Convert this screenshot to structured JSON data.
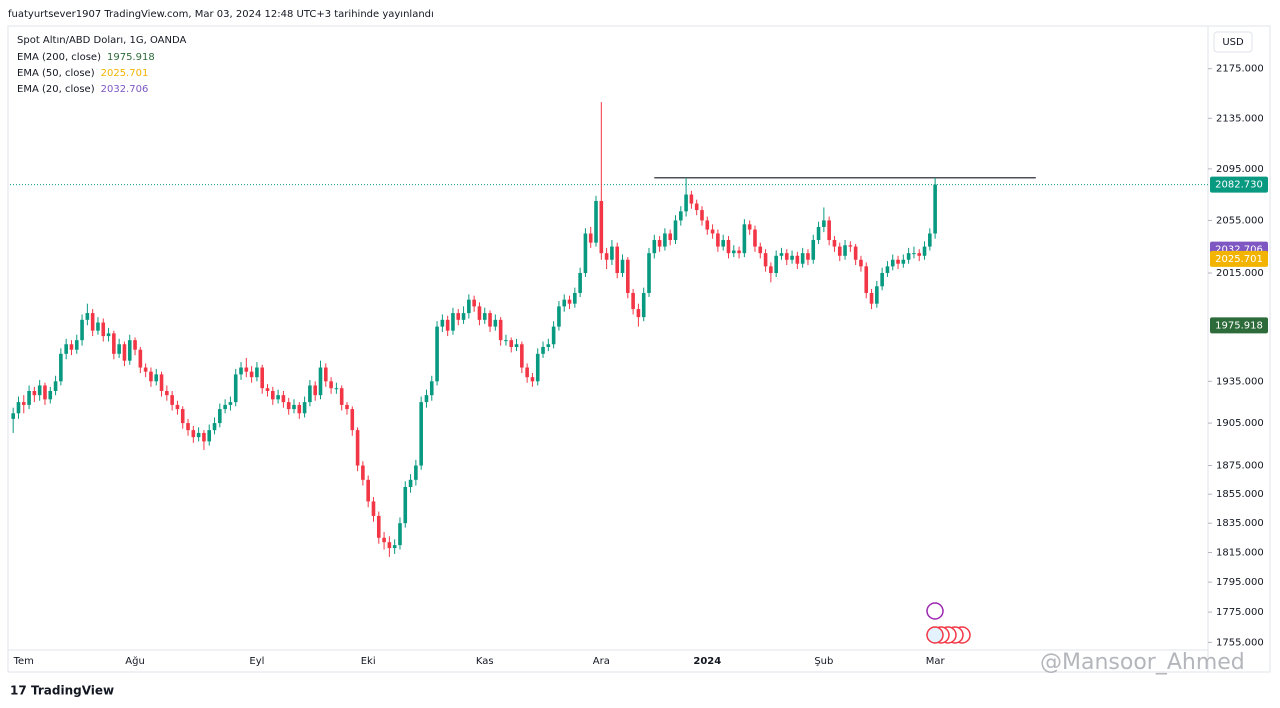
{
  "header": {
    "publisher": "fuatyurtsever1907 TradingView.com, Mar 03, 2024 12:48 UTC+3 tarihinde yayınlandı"
  },
  "chart_data": {
    "type": "candlestick",
    "title": "Spot Altın/ABD Doları, 1G, OANDA",
    "currency": "USD",
    "log_scale": true,
    "up_color": "#089981",
    "down_color": "#f23645",
    "ylim": [
      1750,
      2210
    ],
    "xlim": [
      -0.6,
      225.5
    ],
    "yticks": [
      {
        "value": 2175,
        "label": "2175.000"
      },
      {
        "value": 2135,
        "label": "2135.000"
      },
      {
        "value": 2095,
        "label": "2095.000"
      },
      {
        "value": 2055,
        "label": "2055.000"
      },
      {
        "value": 2015,
        "label": "2015.000"
      },
      {
        "value": 1935,
        "label": "1935.000"
      },
      {
        "value": 1905,
        "label": "1905.000"
      },
      {
        "value": 1875,
        "label": "1875.000"
      },
      {
        "value": 1855,
        "label": "1855.000"
      },
      {
        "value": 1835,
        "label": "1835.000"
      },
      {
        "value": 1815,
        "label": "1815.000"
      },
      {
        "value": 1795,
        "label": "1795.000"
      },
      {
        "value": 1775,
        "label": "1775.000"
      },
      {
        "value": 1755,
        "label": "1755.000"
      }
    ],
    "xticks": [
      {
        "value": 2,
        "label": "Tem"
      },
      {
        "value": 23,
        "label": "Ağu"
      },
      {
        "value": 46,
        "label": "Eyl"
      },
      {
        "value": 67,
        "label": "Eki"
      },
      {
        "value": 89,
        "label": "Kas"
      },
      {
        "value": 111,
        "label": "Ara"
      },
      {
        "value": 131,
        "label": "2024"
      },
      {
        "value": 153,
        "label": "Şub"
      },
      {
        "value": 174,
        "label": "Mar"
      }
    ],
    "indicators": [
      {
        "name": "EMA (200, close)",
        "value": 1975.918,
        "color": "#2e6b3a"
      },
      {
        "name": "EMA (50, close)",
        "value": 2025.701,
        "color": "#f2b400"
      },
      {
        "name": "EMA (20, close)",
        "value": 2032.706,
        "color": "#7e57c2"
      }
    ],
    "last_price": {
      "value": 2082.73,
      "label": "2082.730"
    },
    "hline": {
      "value": 2088,
      "x": [
        121,
        193
      ]
    },
    "ohlc": [
      [
        1908,
        1916,
        1898,
        1912
      ],
      [
        1912,
        1924,
        1908,
        1920
      ],
      [
        1920,
        1925,
        1912,
        1918
      ],
      [
        1918,
        1932,
        1915,
        1928
      ],
      [
        1928,
        1931,
        1920,
        1925
      ],
      [
        1925,
        1936,
        1921,
        1932
      ],
      [
        1932,
        1934,
        1918,
        1922
      ],
      [
        1922,
        1931,
        1919,
        1928
      ],
      [
        1928,
        1939,
        1925,
        1935
      ],
      [
        1935,
        1959,
        1932,
        1955
      ],
      [
        1955,
        1966,
        1951,
        1962
      ],
      [
        1962,
        1965,
        1954,
        1958
      ],
      [
        1958,
        1969,
        1955,
        1965
      ],
      [
        1965,
        1984,
        1961,
        1980
      ],
      [
        1980,
        1992,
        1976,
        1985
      ],
      [
        1985,
        1988,
        1968,
        1972
      ],
      [
        1972,
        1982,
        1969,
        1978
      ],
      [
        1978,
        1981,
        1964,
        1968
      ],
      [
        1968,
        1974,
        1964,
        1970
      ],
      [
        1970,
        1972,
        1951,
        1955
      ],
      [
        1955,
        1966,
        1952,
        1962
      ],
      [
        1962,
        1964,
        1946,
        1950
      ],
      [
        1950,
        1969,
        1947,
        1965
      ],
      [
        1965,
        1967,
        1954,
        1958
      ],
      [
        1958,
        1960,
        1941,
        1945
      ],
      [
        1945,
        1948,
        1938,
        1942
      ],
      [
        1942,
        1945,
        1931,
        1935
      ],
      [
        1935,
        1944,
        1932,
        1940
      ],
      [
        1940,
        1942,
        1924,
        1928
      ],
      [
        1928,
        1932,
        1921,
        1925
      ],
      [
        1925,
        1928,
        1914,
        1918
      ],
      [
        1918,
        1921,
        1911,
        1915
      ],
      [
        1915,
        1917,
        1901,
        1905
      ],
      [
        1905,
        1908,
        1896,
        1900
      ],
      [
        1900,
        1903,
        1891,
        1895
      ],
      [
        1895,
        1902,
        1892,
        1898
      ],
      [
        1898,
        1900,
        1886,
        1892
      ],
      [
        1892,
        1904,
        1889,
        1900
      ],
      [
        1900,
        1909,
        1897,
        1905
      ],
      [
        1905,
        1919,
        1902,
        1915
      ],
      [
        1915,
        1922,
        1912,
        1918
      ],
      [
        1918,
        1924,
        1914,
        1920
      ],
      [
        1920,
        1944,
        1917,
        1940
      ],
      [
        1940,
        1949,
        1936,
        1945
      ],
      [
        1945,
        1952,
        1938,
        1942
      ],
      [
        1942,
        1946,
        1934,
        1938
      ],
      [
        1938,
        1949,
        1935,
        1945
      ],
      [
        1945,
        1947,
        1926,
        1930
      ],
      [
        1930,
        1933,
        1924,
        1928
      ],
      [
        1928,
        1931,
        1918,
        1922
      ],
      [
        1922,
        1929,
        1919,
        1925
      ],
      [
        1925,
        1928,
        1916,
        1920
      ],
      [
        1920,
        1923,
        1911,
        1915
      ],
      [
        1915,
        1922,
        1912,
        1918
      ],
      [
        1918,
        1920,
        1908,
        1912
      ],
      [
        1912,
        1924,
        1909,
        1920
      ],
      [
        1920,
        1936,
        1917,
        1932
      ],
      [
        1932,
        1935,
        1921,
        1925
      ],
      [
        1925,
        1950,
        1922,
        1945
      ],
      [
        1945,
        1948,
        1931,
        1935
      ],
      [
        1935,
        1938,
        1926,
        1930
      ],
      [
        1930,
        1934,
        1926,
        1930
      ],
      [
        1930,
        1932,
        1914,
        1918
      ],
      [
        1918,
        1920,
        1911,
        1915
      ],
      [
        1915,
        1917,
        1896,
        1900
      ],
      [
        1900,
        1902,
        1871,
        1875
      ],
      [
        1875,
        1878,
        1861,
        1865
      ],
      [
        1865,
        1868,
        1846,
        1850
      ],
      [
        1850,
        1853,
        1836,
        1840
      ],
      [
        1840,
        1843,
        1821,
        1825
      ],
      [
        1825,
        1829,
        1817,
        1822
      ],
      [
        1822,
        1826,
        1812,
        1818
      ],
      [
        1818,
        1824,
        1814,
        1820
      ],
      [
        1820,
        1839,
        1817,
        1835
      ],
      [
        1835,
        1864,
        1832,
        1860
      ],
      [
        1860,
        1869,
        1856,
        1865
      ],
      [
        1865,
        1879,
        1861,
        1875
      ],
      [
        1875,
        1924,
        1872,
        1920
      ],
      [
        1920,
        1929,
        1916,
        1925
      ],
      [
        1925,
        1939,
        1921,
        1935
      ],
      [
        1935,
        1979,
        1932,
        1975
      ],
      [
        1975,
        1984,
        1971,
        1980
      ],
      [
        1980,
        1983,
        1968,
        1972
      ],
      [
        1972,
        1989,
        1969,
        1985
      ],
      [
        1985,
        1988,
        1976,
        1980
      ],
      [
        1980,
        1990,
        1977,
        1985
      ],
      [
        1985,
        1999,
        1981,
        1995
      ],
      [
        1995,
        1998,
        1986,
        1990
      ],
      [
        1990,
        1993,
        1976,
        1980
      ],
      [
        1980,
        1989,
        1977,
        1985
      ],
      [
        1985,
        1987,
        1971,
        1975
      ],
      [
        1975,
        1984,
        1972,
        1980
      ],
      [
        1980,
        1982,
        1961,
        1965
      ],
      [
        1965,
        1969,
        1961,
        1965
      ],
      [
        1965,
        1967,
        1956,
        1960
      ],
      [
        1960,
        1966,
        1957,
        1962
      ],
      [
        1962,
        1964,
        1941,
        1945
      ],
      [
        1945,
        1948,
        1934,
        1938
      ],
      [
        1938,
        1941,
        1931,
        1935
      ],
      [
        1935,
        1959,
        1932,
        1955
      ],
      [
        1955,
        1964,
        1952,
        1960
      ],
      [
        1960,
        1966,
        1957,
        1962
      ],
      [
        1962,
        1979,
        1959,
        1975
      ],
      [
        1975,
        1994,
        1972,
        1990
      ],
      [
        1990,
        1999,
        1986,
        1995
      ],
      [
        1995,
        1998,
        1988,
        1992
      ],
      [
        1992,
        2004,
        1989,
        2000
      ],
      [
        2000,
        2019,
        1997,
        2015
      ],
      [
        2015,
        2049,
        2012,
        2045
      ],
      [
        2045,
        2050,
        2034,
        2038
      ],
      [
        2038,
        2074,
        2035,
        2070
      ],
      [
        2070,
        2148,
        2025,
        2030
      ],
      [
        2030,
        2034,
        2018,
        2025
      ],
      [
        2025,
        2040,
        2021,
        2035
      ],
      [
        2035,
        2038,
        2011,
        2015
      ],
      [
        2015,
        2029,
        2012,
        2025
      ],
      [
        2025,
        2027,
        1996,
        2000
      ],
      [
        2000,
        2003,
        1984,
        1988
      ],
      [
        1988,
        1992,
        1975,
        1982
      ],
      [
        1982,
        2004,
        1979,
        2000
      ],
      [
        2000,
        2034,
        1997,
        2030
      ],
      [
        2030,
        2044,
        2026,
        2040
      ],
      [
        2040,
        2043,
        2031,
        2035
      ],
      [
        2035,
        2049,
        2032,
        2045
      ],
      [
        2045,
        2048,
        2036,
        2040
      ],
      [
        2040,
        2059,
        2037,
        2055
      ],
      [
        2055,
        2066,
        2051,
        2062
      ],
      [
        2062,
        2088,
        2058,
        2075
      ],
      [
        2075,
        2078,
        2064,
        2068
      ],
      [
        2068,
        2071,
        2059,
        2063
      ],
      [
        2063,
        2066,
        2051,
        2055
      ],
      [
        2055,
        2058,
        2044,
        2048
      ],
      [
        2048,
        2052,
        2041,
        2045
      ],
      [
        2045,
        2048,
        2031,
        2035
      ],
      [
        2035,
        2044,
        2032,
        2040
      ],
      [
        2040,
        2043,
        2026,
        2030
      ],
      [
        2030,
        2036,
        2027,
        2032
      ],
      [
        2032,
        2035,
        2026,
        2030
      ],
      [
        2030,
        2056,
        2027,
        2052
      ],
      [
        2052,
        2055,
        2044,
        2048
      ],
      [
        2048,
        2051,
        2031,
        2035
      ],
      [
        2035,
        2038,
        2026,
        2030
      ],
      [
        2030,
        2033,
        2016,
        2020
      ],
      [
        2020,
        2023,
        2008,
        2015
      ],
      [
        2015,
        2032,
        2012,
        2028
      ],
      [
        2028,
        2034,
        2025,
        2030
      ],
      [
        2030,
        2033,
        2021,
        2025
      ],
      [
        2025,
        2032,
        2022,
        2028
      ],
      [
        2028,
        2031,
        2018,
        2022
      ],
      [
        2022,
        2034,
        2019,
        2030
      ],
      [
        2030,
        2033,
        2021,
        2025
      ],
      [
        2025,
        2044,
        2022,
        2040
      ],
      [
        2040,
        2054,
        2037,
        2050
      ],
      [
        2050,
        2065,
        2046,
        2055
      ],
      [
        2055,
        2058,
        2036,
        2040
      ],
      [
        2040,
        2043,
        2031,
        2035
      ],
      [
        2035,
        2038,
        2024,
        2028
      ],
      [
        2028,
        2040,
        2025,
        2036
      ],
      [
        2036,
        2039,
        2031,
        2035
      ],
      [
        2035,
        2037,
        2021,
        2025
      ],
      [
        2025,
        2028,
        2016,
        2020
      ],
      [
        2020,
        2023,
        1996,
        2000
      ],
      [
        2000,
        2003,
        1988,
        1992
      ],
      [
        1992,
        2009,
        1989,
        2005
      ],
      [
        2005,
        2019,
        2002,
        2015
      ],
      [
        2015,
        2024,
        2012,
        2020
      ],
      [
        2020,
        2029,
        2017,
        2025
      ],
      [
        2025,
        2028,
        2018,
        2022
      ],
      [
        2022,
        2029,
        2019,
        2025
      ],
      [
        2025,
        2034,
        2022,
        2030
      ],
      [
        2030,
        2035,
        2026,
        2030
      ],
      [
        2030,
        2033,
        2024,
        2028
      ],
      [
        2028,
        2039,
        2025,
        2035
      ],
      [
        2035,
        2049,
        2032,
        2045
      ],
      [
        2045,
        2088,
        2041,
        2082.73
      ]
    ]
  },
  "watermark": "@Mansoor_Ahmed",
  "branding": "TradingView"
}
